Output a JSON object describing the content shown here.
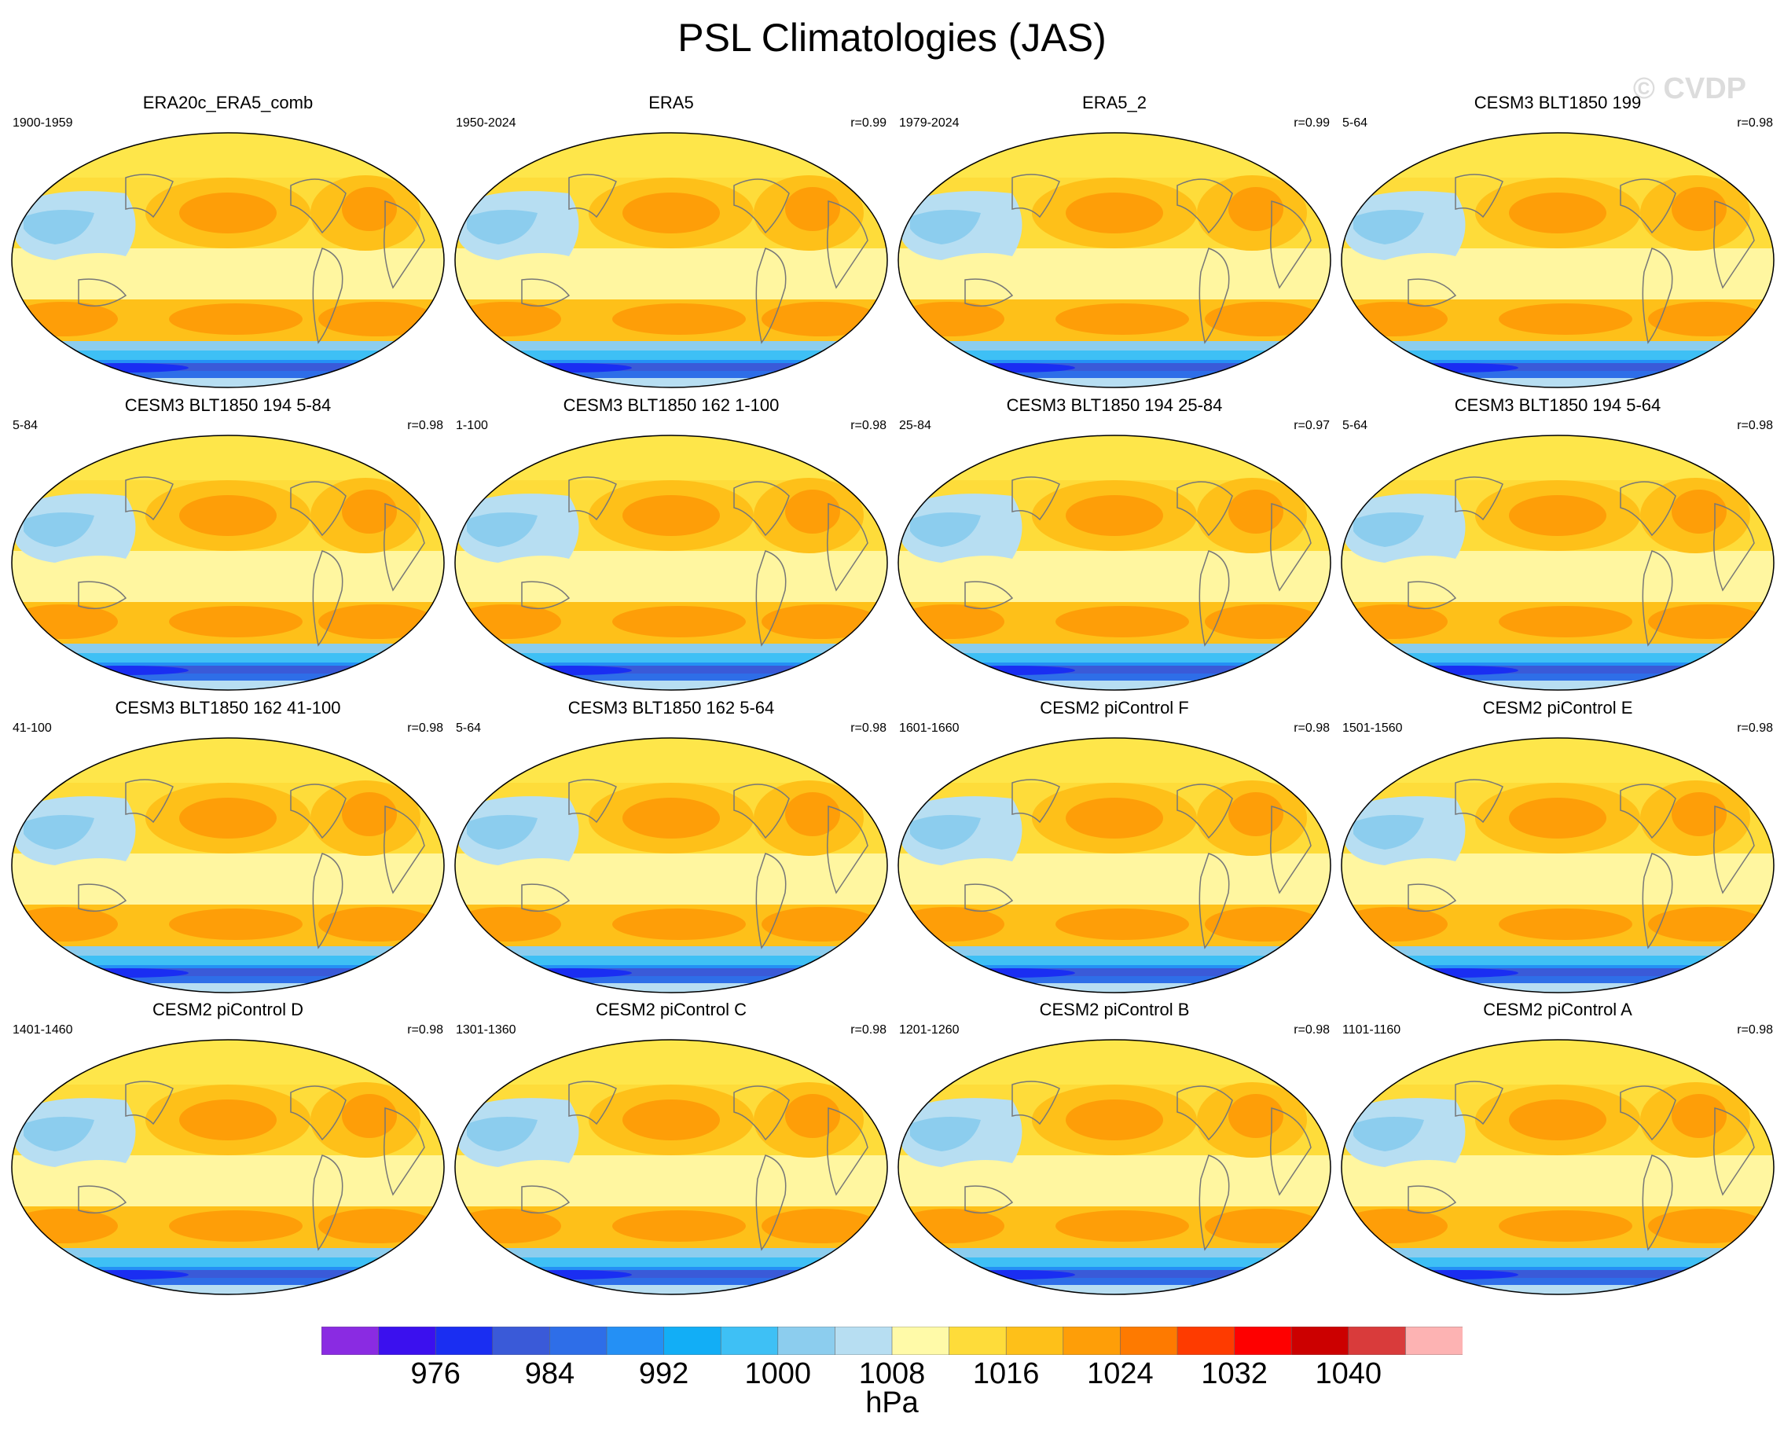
{
  "title": "PSL Climatologies (JAS)",
  "watermark": "© CVDP",
  "panels": [
    {
      "title": "ERA20c_ERA5_comb",
      "period": "1900-1959",
      "corr": ""
    },
    {
      "title": "ERA5",
      "period": "1950-2024",
      "corr": "r=0.99"
    },
    {
      "title": "ERA5_2",
      "period": "1979-2024",
      "corr": "r=0.99"
    },
    {
      "title": "CESM3 BLT1850 199",
      "period": "5-64",
      "corr": "r=0.98"
    },
    {
      "title": "CESM3 BLT1850 194 5-84",
      "period": "5-84",
      "corr": "r=0.98"
    },
    {
      "title": "CESM3 BLT1850 162 1-100",
      "period": "1-100",
      "corr": "r=0.98"
    },
    {
      "title": "CESM3 BLT1850 194 25-84",
      "period": "25-84",
      "corr": "r=0.97"
    },
    {
      "title": "CESM3 BLT1850 194 5-64",
      "period": "5-64",
      "corr": "r=0.98"
    },
    {
      "title": "CESM3 BLT1850 162 41-100",
      "period": "41-100",
      "corr": "r=0.98"
    },
    {
      "title": "CESM3 BLT1850 162 5-64",
      "period": "5-64",
      "corr": "r=0.98"
    },
    {
      "title": "CESM2 piControl F",
      "period": "1601-1660",
      "corr": "r=0.98"
    },
    {
      "title": "CESM2 piControl E",
      "period": "1501-1560",
      "corr": "r=0.98"
    },
    {
      "title": "CESM2 piControl D",
      "period": "1401-1460",
      "corr": "r=0.98"
    },
    {
      "title": "CESM2 piControl C",
      "period": "1301-1360",
      "corr": "r=0.98"
    },
    {
      "title": "CESM2 piControl B",
      "period": "1201-1260",
      "corr": "r=0.98"
    },
    {
      "title": "CESM2 piControl A",
      "period": "1101-1160",
      "corr": "r=0.98"
    }
  ],
  "colorbar": {
    "colors": [
      "#8a2be2",
      "#3b10ee",
      "#1a2ef2",
      "#3a5ad8",
      "#2e6ee8",
      "#2490f5",
      "#12aef6",
      "#3ec0f5",
      "#8ccdee",
      "#b7def2",
      "#fffaa8",
      "#fedc3a",
      "#fec019",
      "#fe9e08",
      "#fe7a00",
      "#fe3b00",
      "#fe0000",
      "#cc0000",
      "#d93b3b",
      "#fdb3b3"
    ],
    "ticks": [
      "976",
      "984",
      "992",
      "1000",
      "1008",
      "1016",
      "1024",
      "1032",
      "1040"
    ],
    "units": "hPa"
  }
}
